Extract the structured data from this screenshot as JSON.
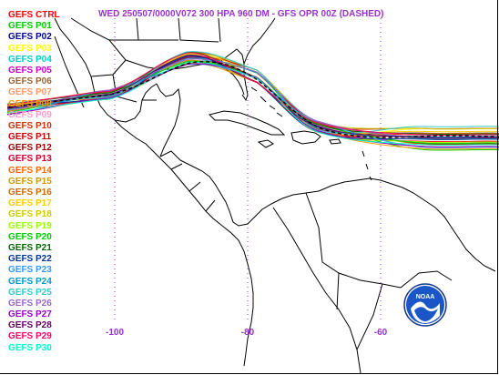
{
  "title": "WED 250507/0000V072  300 HPA 960 DM - GFS OPR 00Z (DASHED)",
  "legend": [
    {
      "label": "GEFS CTRL",
      "color": "#ff0000"
    },
    {
      "label": "GEFS P01",
      "color": "#00cc00"
    },
    {
      "label": "GEFS P02",
      "color": "#000099"
    },
    {
      "label": "GEFS P03",
      "color": "#ffff00"
    },
    {
      "label": "GEFS P04",
      "color": "#00cccc"
    },
    {
      "label": "GEFS P05",
      "color": "#cc00cc"
    },
    {
      "label": "GEFS P06",
      "color": "#996633"
    },
    {
      "label": "GEFS P07",
      "color": "#ff9966"
    },
    {
      "label": "GEFS P08",
      "color": "#ff9900"
    },
    {
      "label": "GEFS P09",
      "color": "#ff99cc"
    },
    {
      "label": "GEFS P10",
      "color": "#cc3300"
    },
    {
      "label": "GEFS P11",
      "color": "#cc0000"
    },
    {
      "label": "GEFS P12",
      "color": "#990000"
    },
    {
      "label": "GEFS P13",
      "color": "#cc0033"
    },
    {
      "label": "GEFS P14",
      "color": "#ff6600"
    },
    {
      "label": "GEFS P15",
      "color": "#cc9900"
    },
    {
      "label": "GEFS P16",
      "color": "#cc6600"
    },
    {
      "label": "GEFS P17",
      "color": "#ffcc00"
    },
    {
      "label": "GEFS P18",
      "color": "#cccc00"
    },
    {
      "label": "GEFS P19",
      "color": "#99ff00"
    },
    {
      "label": "GEFS P20",
      "color": "#00cc00"
    },
    {
      "label": "GEFS P21",
      "color": "#006600"
    },
    {
      "label": "GEFS P22",
      "color": "#003399"
    },
    {
      "label": "GEFS P23",
      "color": "#3399ff"
    },
    {
      "label": "GEFS P24",
      "color": "#0099cc"
    },
    {
      "label": "GEFS P25",
      "color": "#33cccc"
    },
    {
      "label": "GEFS P26",
      "color": "#9966cc"
    },
    {
      "label": "GEFS P27",
      "color": "#9900cc"
    },
    {
      "label": "GEFS P28",
      "color": "#660066"
    },
    {
      "label": "GEFS P29",
      "color": "#ff0066"
    },
    {
      "label": "GEFS P30",
      "color": "#00ffcc"
    }
  ],
  "x_ticks": [
    {
      "label": "-100",
      "lon": -100
    },
    {
      "label": "-80",
      "lon": -80
    },
    {
      "label": "-60",
      "lon": -60
    }
  ],
  "colors": {
    "title": "#9933cc",
    "grid": "#9933cc",
    "coast": "#000000",
    "background": "#ffffff"
  },
  "logo": {
    "text": "NOAA",
    "icon": "noaa-logo"
  }
}
